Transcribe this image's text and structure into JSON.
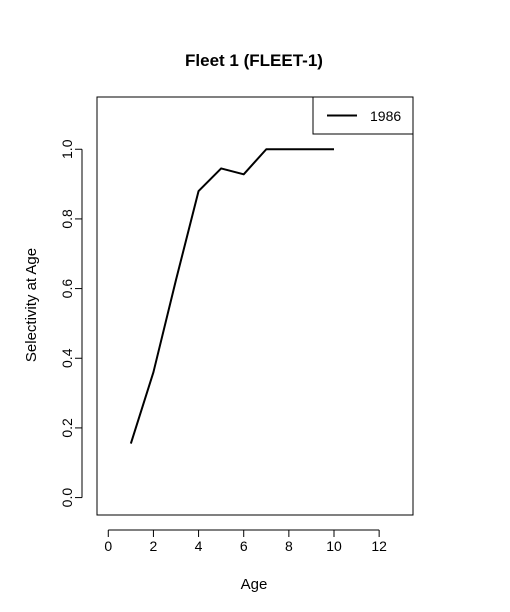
{
  "chart_data": {
    "type": "line",
    "title": "Fleet 1 (FLEET-1)",
    "xlabel": "Age",
    "ylabel": "Selectivity at Age",
    "xlim": [
      -0.5,
      13.5
    ],
    "ylim": [
      -0.05,
      1.15
    ],
    "x_ticks": [
      0,
      2,
      4,
      6,
      8,
      10,
      12
    ],
    "y_ticks": [
      0.0,
      0.2,
      0.4,
      0.6,
      0.8,
      1.0
    ],
    "x_tick_labels": [
      "0",
      "2",
      "4",
      "6",
      "8",
      "10",
      "12"
    ],
    "y_tick_labels": [
      "0.0",
      "0.2",
      "0.4",
      "0.6",
      "0.8",
      "1.0"
    ],
    "grid": false,
    "legend": {
      "position": "top-right"
    },
    "series": [
      {
        "name": "1986",
        "color": "#000000",
        "x": [
          1,
          2,
          3,
          4,
          5,
          6,
          7,
          8,
          9,
          10
        ],
        "values": [
          0.155,
          0.36,
          0.625,
          0.88,
          0.945,
          0.928,
          1.0,
          1.0,
          1.0,
          1.0
        ]
      }
    ]
  }
}
